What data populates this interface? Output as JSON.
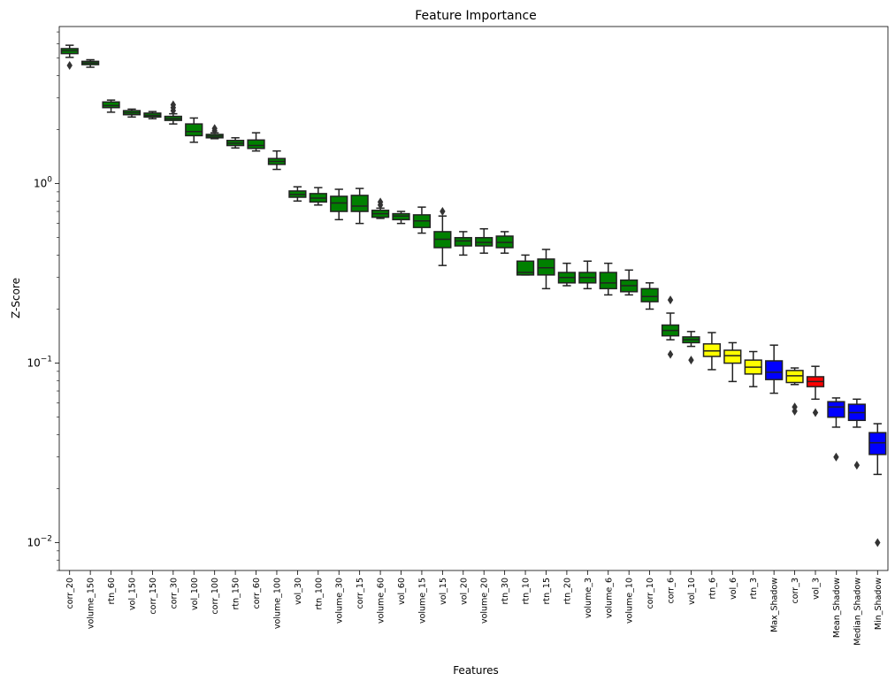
{
  "chart_data": {
    "type": "box",
    "title": "Feature Importance",
    "xlabel": "Features",
    "ylabel": "Z-Score",
    "yscale": "log",
    "ylim": [
      0.007,
      7.5
    ],
    "yticks": [
      {
        "value": 0.01,
        "base": "10",
        "exp": "−2"
      },
      {
        "value": 0.1,
        "base": "10",
        "exp": "−1"
      },
      {
        "value": 1,
        "base": "10",
        "exp": "0"
      }
    ],
    "colors": {
      "accepted": "#008000",
      "tentative": "#ffff00",
      "rejected": "#ff0000",
      "shadow": "#0000ff"
    },
    "boxes": [
      {
        "label": "corr_20",
        "status": "accepted",
        "whislo": 5.05,
        "q1": 5.3,
        "med": 5.5,
        "q3": 5.65,
        "whishi": 5.9,
        "fliers": [
          4.55
        ]
      },
      {
        "label": "volume_150",
        "status": "accepted",
        "whislo": 4.45,
        "q1": 4.6,
        "med": 4.7,
        "q3": 4.8,
        "whishi": 4.9,
        "fliers": []
      },
      {
        "label": "rtn_60",
        "status": "accepted",
        "whislo": 2.5,
        "q1": 2.65,
        "med": 2.72,
        "q3": 2.85,
        "whishi": 2.92,
        "fliers": []
      },
      {
        "label": "vol_150",
        "status": "accepted",
        "whislo": 2.35,
        "q1": 2.42,
        "med": 2.48,
        "q3": 2.55,
        "whishi": 2.6,
        "fliers": []
      },
      {
        "label": "corr_150",
        "status": "accepted",
        "whislo": 2.3,
        "q1": 2.35,
        "med": 2.4,
        "q3": 2.47,
        "whishi": 2.52,
        "fliers": []
      },
      {
        "label": "corr_30",
        "status": "accepted",
        "whislo": 2.15,
        "q1": 2.25,
        "med": 2.3,
        "q3": 2.37,
        "whishi": 2.45,
        "fliers": [
          2.55,
          2.65,
          2.75
        ]
      },
      {
        "label": "vol_100",
        "status": "accepted",
        "whislo": 1.7,
        "q1": 1.85,
        "med": 1.95,
        "q3": 2.15,
        "whishi": 2.32,
        "fliers": []
      },
      {
        "label": "corr_100",
        "status": "accepted",
        "whislo": 1.78,
        "q1": 1.8,
        "med": 1.84,
        "q3": 1.88,
        "whishi": 1.92,
        "fliers": [
          1.97,
          2.03
        ]
      },
      {
        "label": "rtn_150",
        "status": "accepted",
        "whislo": 1.58,
        "q1": 1.63,
        "med": 1.68,
        "q3": 1.74,
        "whishi": 1.8,
        "fliers": []
      },
      {
        "label": "corr_60",
        "status": "accepted",
        "whislo": 1.52,
        "q1": 1.57,
        "med": 1.63,
        "q3": 1.75,
        "whishi": 1.92,
        "fliers": []
      },
      {
        "label": "volume_100",
        "status": "accepted",
        "whislo": 1.2,
        "q1": 1.28,
        "med": 1.33,
        "q3": 1.38,
        "whishi": 1.52,
        "fliers": []
      },
      {
        "label": "vol_30",
        "status": "accepted",
        "whislo": 0.8,
        "q1": 0.84,
        "med": 0.87,
        "q3": 0.91,
        "whishi": 0.96,
        "fliers": []
      },
      {
        "label": "rtn_100",
        "status": "accepted",
        "whislo": 0.76,
        "q1": 0.79,
        "med": 0.83,
        "q3": 0.88,
        "whishi": 0.95,
        "fliers": []
      },
      {
        "label": "volume_30",
        "status": "accepted",
        "whislo": 0.63,
        "q1": 0.7,
        "med": 0.78,
        "q3": 0.85,
        "whishi": 0.93,
        "fliers": []
      },
      {
        "label": "corr_15",
        "status": "accepted",
        "whislo": 0.6,
        "q1": 0.7,
        "med": 0.75,
        "q3": 0.86,
        "whishi": 0.94,
        "fliers": []
      },
      {
        "label": "volume_60",
        "status": "accepted",
        "whislo": 0.64,
        "q1": 0.65,
        "med": 0.68,
        "q3": 0.71,
        "whishi": 0.73,
        "fliers": [
          0.76,
          0.79
        ]
      },
      {
        "label": "vol_60",
        "status": "accepted",
        "whislo": 0.6,
        "q1": 0.63,
        "med": 0.66,
        "q3": 0.68,
        "whishi": 0.7,
        "fliers": []
      },
      {
        "label": "volume_15",
        "status": "accepted",
        "whislo": 0.53,
        "q1": 0.57,
        "med": 0.62,
        "q3": 0.67,
        "whishi": 0.74,
        "fliers": []
      },
      {
        "label": "vol_15",
        "status": "accepted",
        "whislo": 0.35,
        "q1": 0.44,
        "med": 0.49,
        "q3": 0.54,
        "whishi": 0.66,
        "fliers": [
          0.7
        ]
      },
      {
        "label": "vol_20",
        "status": "accepted",
        "whislo": 0.4,
        "q1": 0.45,
        "med": 0.48,
        "q3": 0.5,
        "whishi": 0.54,
        "fliers": []
      },
      {
        "label": "volume_20",
        "status": "accepted",
        "whislo": 0.41,
        "q1": 0.45,
        "med": 0.47,
        "q3": 0.5,
        "whishi": 0.56,
        "fliers": []
      },
      {
        "label": "rtn_30",
        "status": "accepted",
        "whislo": 0.41,
        "q1": 0.44,
        "med": 0.47,
        "q3": 0.51,
        "whishi": 0.54,
        "fliers": []
      },
      {
        "label": "rtn_10",
        "status": "accepted",
        "whislo": 0.31,
        "q1": 0.31,
        "med": 0.32,
        "q3": 0.37,
        "whishi": 0.4,
        "fliers": []
      },
      {
        "label": "rtn_15",
        "status": "accepted",
        "whislo": 0.26,
        "q1": 0.31,
        "med": 0.34,
        "q3": 0.38,
        "whishi": 0.43,
        "fliers": []
      },
      {
        "label": "rtn_20",
        "status": "accepted",
        "whislo": 0.27,
        "q1": 0.28,
        "med": 0.3,
        "q3": 0.32,
        "whishi": 0.36,
        "fliers": []
      },
      {
        "label": "volume_3",
        "status": "accepted",
        "whislo": 0.26,
        "q1": 0.28,
        "med": 0.3,
        "q3": 0.32,
        "whishi": 0.37,
        "fliers": []
      },
      {
        "label": "volume_6",
        "status": "accepted",
        "whislo": 0.24,
        "q1": 0.26,
        "med": 0.28,
        "q3": 0.32,
        "whishi": 0.36,
        "fliers": []
      },
      {
        "label": "volume_10",
        "status": "accepted",
        "whislo": 0.24,
        "q1": 0.25,
        "med": 0.27,
        "q3": 0.29,
        "whishi": 0.33,
        "fliers": []
      },
      {
        "label": "corr_10",
        "status": "accepted",
        "whislo": 0.2,
        "q1": 0.22,
        "med": 0.235,
        "q3": 0.26,
        "whishi": 0.28,
        "fliers": []
      },
      {
        "label": "corr_6",
        "status": "accepted",
        "whislo": 0.135,
        "q1": 0.142,
        "med": 0.152,
        "q3": 0.163,
        "whishi": 0.19,
        "fliers": [
          0.225,
          0.112
        ]
      },
      {
        "label": "vol_10",
        "status": "accepted",
        "whislo": 0.124,
        "q1": 0.13,
        "med": 0.135,
        "q3": 0.14,
        "whishi": 0.15,
        "fliers": [
          0.104
        ]
      },
      {
        "label": "rtn_6",
        "status": "tentative",
        "whislo": 0.092,
        "q1": 0.109,
        "med": 0.117,
        "q3": 0.128,
        "whishi": 0.148,
        "fliers": []
      },
      {
        "label": "vol_6",
        "status": "tentative",
        "whislo": 0.079,
        "q1": 0.1,
        "med": 0.11,
        "q3": 0.118,
        "whishi": 0.13,
        "fliers": []
      },
      {
        "label": "rtn_3",
        "status": "tentative",
        "whislo": 0.074,
        "q1": 0.087,
        "med": 0.095,
        "q3": 0.104,
        "whishi": 0.116,
        "fliers": []
      },
      {
        "label": "Max_Shadow",
        "status": "shadow",
        "whislo": 0.068,
        "q1": 0.081,
        "med": 0.089,
        "q3": 0.103,
        "whishi": 0.126,
        "fliers": []
      },
      {
        "label": "corr_3",
        "status": "tentative",
        "whislo": 0.076,
        "q1": 0.078,
        "med": 0.085,
        "q3": 0.091,
        "whishi": 0.094,
        "fliers": [
          0.057,
          0.054
        ]
      },
      {
        "label": "vol_3",
        "status": "rejected",
        "whislo": 0.063,
        "q1": 0.074,
        "med": 0.079,
        "q3": 0.084,
        "whishi": 0.096,
        "fliers": [
          0.053
        ]
      },
      {
        "label": "Mean_Shadow",
        "status": "shadow",
        "whislo": 0.044,
        "q1": 0.05,
        "med": 0.057,
        "q3": 0.061,
        "whishi": 0.064,
        "fliers": [
          0.03
        ]
      },
      {
        "label": "Median_Shadow",
        "status": "shadow",
        "whislo": 0.044,
        "q1": 0.048,
        "med": 0.053,
        "q3": 0.059,
        "whishi": 0.063,
        "fliers": [
          0.027
        ]
      },
      {
        "label": "Min_Shadow",
        "status": "shadow",
        "whislo": 0.024,
        "q1": 0.031,
        "med": 0.036,
        "q3": 0.041,
        "whishi": 0.046,
        "fliers": [
          0.01
        ]
      }
    ]
  }
}
